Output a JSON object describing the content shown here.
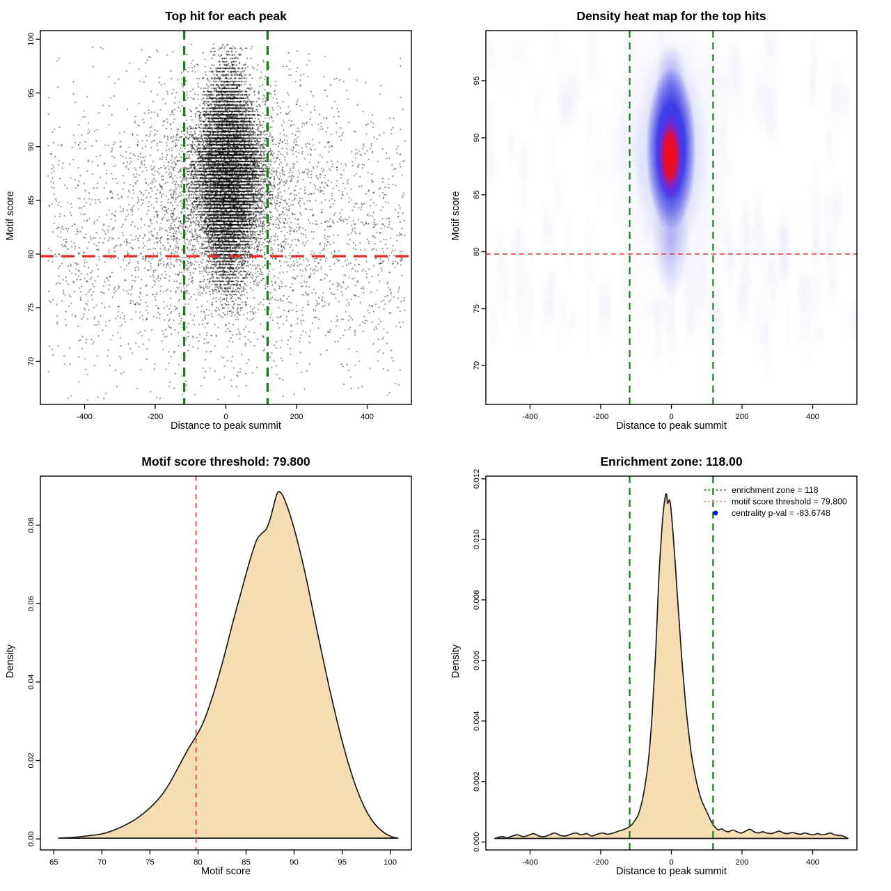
{
  "page": {
    "background": "#ffffff"
  },
  "chart_data": [
    {
      "type": "scatter",
      "title": "Top hit for each peak",
      "xlabel": "Distance to peak summit",
      "ylabel": "Motif score",
      "xlim": [
        -525,
        525
      ],
      "ylim": [
        66.0,
        100.8
      ],
      "xticks": [
        -400,
        -200,
        0,
        200,
        400
      ],
      "yticks": [
        70,
        75,
        80,
        85,
        90,
        95,
        100
      ],
      "xdec": 0,
      "ydec": 0,
      "point_color": "#000000",
      "scatter": {
        "cluster": {
          "n": 13000,
          "x_center": 5,
          "x_sd": 45,
          "y_center": 87.6,
          "y_sd": 4.3,
          "y_quantum": 0.31
        },
        "halo": {
          "n": 2800,
          "x_center": 0,
          "x_sd": 130,
          "y_center": 85.5,
          "y_sd": 6.0
        },
        "background": {
          "n": 2300,
          "x_min": -505,
          "x_max": 505,
          "y_center": 81.5,
          "y_sd": 6.8
        }
      },
      "hlines": [
        {
          "y": 79.8,
          "color": "#e03131",
          "width": 3.4,
          "dash": [
            19,
            11
          ],
          "name": "motif-score-threshold-line"
        }
      ],
      "vlines": [
        {
          "x": -118,
          "color": "#1d7d1d",
          "width": 3.3,
          "dash": [
            13,
            9
          ],
          "name": "enrichment-zone-left-line"
        },
        {
          "x": 118,
          "color": "#1d7d1d",
          "width": 3.3,
          "dash": [
            13,
            9
          ],
          "name": "enrichment-zone-right-line"
        }
      ]
    },
    {
      "type": "heatmap",
      "title": "Density heat map for the top hits",
      "xlabel": "Distance to peak summit",
      "ylabel": "Motif score",
      "xlim": [
        -525,
        525
      ],
      "ylim": [
        66.6,
        99.4
      ],
      "xticks": [
        -400,
        -200,
        0,
        200,
        400
      ],
      "yticks": [
        70,
        75,
        80,
        85,
        90,
        95
      ],
      "xdec": 0,
      "ydec": 0,
      "heat": {
        "center_x": 0,
        "center_y": 88,
        "core_color": "255,10,10",
        "blue_color": "40,40,230",
        "halo_color": "150,150,235",
        "noise_color": "170,170,230"
      },
      "hlines": [
        {
          "y": 79.8,
          "color": "#e24545",
          "width": 1.6,
          "dash": [
            7,
            5
          ],
          "name": "motif-score-threshold-line"
        }
      ],
      "vlines": [
        {
          "x": -118,
          "color": "#1d7d1d",
          "width": 2.2,
          "dash": [
            10,
            7
          ],
          "name": "enrichment-zone-left-line"
        },
        {
          "x": 118,
          "color": "#1d7d1d",
          "width": 2.2,
          "dash": [
            10,
            7
          ],
          "name": "enrichment-zone-right-line"
        }
      ]
    },
    {
      "type": "density",
      "title": "Motif score threshold: 79.800",
      "xlabel": "Motif score",
      "ylabel": "Density",
      "xlim": [
        63.6,
        102.2
      ],
      "ylim": [
        -0.0028,
        0.0925
      ],
      "xticks": [
        65,
        70,
        75,
        80,
        85,
        90,
        95,
        100
      ],
      "yticks": [
        0,
        0.02,
        0.04,
        0.06,
        0.08
      ],
      "xdec": 0,
      "ydec": 2,
      "fill": "#f5deb3",
      "line_color": "#1a1a1a",
      "vlines": [
        {
          "x": 79.8,
          "color": "#e05252",
          "width": 1.9,
          "dash": [
            7,
            6
          ],
          "name": "motif-score-threshold-line"
        }
      ],
      "curve": [
        [
          65.5,
          0.0002
        ],
        [
          67,
          0.0004
        ],
        [
          68.5,
          0.0008
        ],
        [
          70,
          0.0013
        ],
        [
          71.2,
          0.0022
        ],
        [
          72.4,
          0.0035
        ],
        [
          73.6,
          0.0052
        ],
        [
          74.8,
          0.0075
        ],
        [
          76,
          0.0105
        ],
        [
          77,
          0.014
        ],
        [
          78,
          0.0185
        ],
        [
          79,
          0.023
        ],
        [
          79.8,
          0.0262
        ],
        [
          80.6,
          0.03
        ],
        [
          81.6,
          0.037
        ],
        [
          82.6,
          0.0455
        ],
        [
          83.6,
          0.055
        ],
        [
          84.6,
          0.064
        ],
        [
          85.4,
          0.071
        ],
        [
          86.1,
          0.0762
        ],
        [
          86.6,
          0.0778
        ],
        [
          87.1,
          0.079
        ],
        [
          87.5,
          0.0815
        ],
        [
          88,
          0.0862
        ],
        [
          88.3,
          0.0884
        ],
        [
          88.7,
          0.088
        ],
        [
          89.2,
          0.0853
        ],
        [
          89.8,
          0.0808
        ],
        [
          90.5,
          0.0745
        ],
        [
          91.3,
          0.066
        ],
        [
          92.1,
          0.0565
        ],
        [
          93,
          0.046
        ],
        [
          93.9,
          0.036
        ],
        [
          94.8,
          0.0268
        ],
        [
          95.7,
          0.0188
        ],
        [
          96.6,
          0.0122
        ],
        [
          97.5,
          0.0072
        ],
        [
          98.4,
          0.0038
        ],
        [
          99.3,
          0.0017
        ],
        [
          100.1,
          0.0006
        ],
        [
          100.8,
          0.0002
        ]
      ]
    },
    {
      "type": "density",
      "title": "Enrichment zone: 118.00",
      "xlabel": "Distance to peak summit",
      "ylabel": "Density",
      "xlim": [
        -525,
        525
      ],
      "ylim": [
        -0.00026,
        0.01209
      ],
      "xticks": [
        -400,
        -200,
        0,
        200,
        400
      ],
      "yticks": [
        0,
        0.002,
        0.004,
        0.006,
        0.008,
        0.01,
        0.012
      ],
      "xdec": 0,
      "ydec": 3,
      "fill": "#f5deb3",
      "line_color": "#1a1a1a",
      "vlines": [
        {
          "x": -118,
          "color": "#1d7d1d",
          "width": 2.3,
          "dash": [
            10,
            7
          ],
          "name": "enrichment-zone-left-line"
        },
        {
          "x": 118,
          "color": "#1d7d1d",
          "width": 2.3,
          "dash": [
            10,
            7
          ],
          "name": "enrichment-zone-right-line"
        }
      ],
      "curve": [
        [
          -500,
          0.00012
        ],
        [
          -480,
          0.00018
        ],
        [
          -465,
          0.00014
        ],
        [
          -450,
          0.0002
        ],
        [
          -435,
          0.00024
        ],
        [
          -420,
          0.00018
        ],
        [
          -405,
          0.00022
        ],
        [
          -390,
          0.00028
        ],
        [
          -375,
          0.0002
        ],
        [
          -360,
          0.00018
        ],
        [
          -345,
          0.00024
        ],
        [
          -330,
          0.0003
        ],
        [
          -315,
          0.00022
        ],
        [
          -300,
          0.0002
        ],
        [
          -285,
          0.00026
        ],
        [
          -270,
          0.0003
        ],
        [
          -255,
          0.00024
        ],
        [
          -240,
          0.00028
        ],
        [
          -225,
          0.0002
        ],
        [
          -210,
          0.00026
        ],
        [
          -195,
          0.0003
        ],
        [
          -180,
          0.00026
        ],
        [
          -165,
          0.0003
        ],
        [
          -150,
          0.00036
        ],
        [
          -138,
          0.0004
        ],
        [
          -126,
          0.00046
        ],
        [
          -114,
          0.00055
        ],
        [
          -104,
          0.0007
        ],
        [
          -94,
          0.0009
        ],
        [
          -84,
          0.0013
        ],
        [
          -74,
          0.0019
        ],
        [
          -64,
          0.0028
        ],
        [
          -54,
          0.0043
        ],
        [
          -44,
          0.0064
        ],
        [
          -36,
          0.0086
        ],
        [
          -29,
          0.01
        ],
        [
          -23,
          0.0109
        ],
        [
          -18,
          0.01137
        ],
        [
          -14,
          0.0115
        ],
        [
          -11,
          0.0112
        ],
        [
          -8,
          0.01125
        ],
        [
          -5,
          0.0113
        ],
        [
          -2,
          0.0111
        ],
        [
          2,
          0.0106
        ],
        [
          6,
          0.01
        ],
        [
          11,
          0.0092
        ],
        [
          16,
          0.0083
        ],
        [
          22,
          0.0073
        ],
        [
          28,
          0.0063
        ],
        [
          34,
          0.0054
        ],
        [
          40,
          0.0046
        ],
        [
          46,
          0.0039
        ],
        [
          52,
          0.0033
        ],
        [
          58,
          0.0028
        ],
        [
          64,
          0.0024
        ],
        [
          70,
          0.00205
        ],
        [
          76,
          0.00175
        ],
        [
          82,
          0.0015
        ],
        [
          88,
          0.0013
        ],
        [
          94,
          0.00115
        ],
        [
          100,
          0.001
        ],
        [
          106,
          0.00085
        ],
        [
          112,
          0.0007
        ],
        [
          118,
          0.00058
        ],
        [
          126,
          0.00046
        ],
        [
          134,
          0.0004
        ],
        [
          142,
          0.00044
        ],
        [
          150,
          0.00038
        ],
        [
          162,
          0.00034
        ],
        [
          174,
          0.0004
        ],
        [
          186,
          0.00034
        ],
        [
          198,
          0.0003
        ],
        [
          210,
          0.00036
        ],
        [
          222,
          0.00042
        ],
        [
          234,
          0.00034
        ],
        [
          246,
          0.0003
        ],
        [
          258,
          0.00034
        ],
        [
          270,
          0.0003
        ],
        [
          282,
          0.00028
        ],
        [
          294,
          0.00032
        ],
        [
          306,
          0.00036
        ],
        [
          318,
          0.0003
        ],
        [
          330,
          0.00028
        ],
        [
          342,
          0.00032
        ],
        [
          354,
          0.00028
        ],
        [
          366,
          0.00026
        ],
        [
          378,
          0.0003
        ],
        [
          390,
          0.00026
        ],
        [
          402,
          0.00024
        ],
        [
          414,
          0.00028
        ],
        [
          426,
          0.00024
        ],
        [
          438,
          0.00026
        ],
        [
          450,
          0.0003
        ],
        [
          462,
          0.00024
        ],
        [
          474,
          0.00022
        ],
        [
          486,
          0.0002
        ],
        [
          500,
          0.00012
        ]
      ],
      "legend": {
        "items": [
          {
            "symbol": "dotted-line",
            "color": "#1d7d1d",
            "label": "enrichment zone = 118"
          },
          {
            "symbol": "dotted-line",
            "color": "#e88f8f",
            "label": "motif score threshold = 79.800"
          },
          {
            "symbol": "point",
            "color": "#1414e0",
            "label": "centrality p-val = -83.6748"
          }
        ]
      }
    }
  ]
}
